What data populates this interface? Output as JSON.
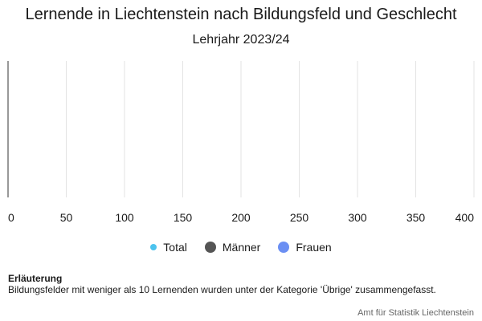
{
  "chart_data": {
    "type": "bar",
    "orientation": "horizontal",
    "title": "Lernende in Liechtenstein nach Bildungsfeld und Geschlecht",
    "subtitle": "Lehrjahr 2023/24",
    "categories": [],
    "series": [
      {
        "name": "Total",
        "values": [],
        "color": "#4cc3ee"
      },
      {
        "name": "Männer",
        "values": [],
        "color": "#555555"
      },
      {
        "name": "Frauen",
        "values": [],
        "color": "#6b8ff3"
      }
    ],
    "xlim": [
      0,
      400
    ],
    "x_ticks": [
      "0",
      "50",
      "100",
      "150",
      "200",
      "250",
      "300",
      "350",
      "400"
    ],
    "grid": true,
    "legend_position": "bottom"
  },
  "note": {
    "title": "Erläuterung",
    "text": "Bildungsfelder mit weniger als 10 Lernenden wurden unter der Kategorie 'Übrige' zusammengefasst."
  },
  "credit": "Amt für Statistik Liechtenstein"
}
